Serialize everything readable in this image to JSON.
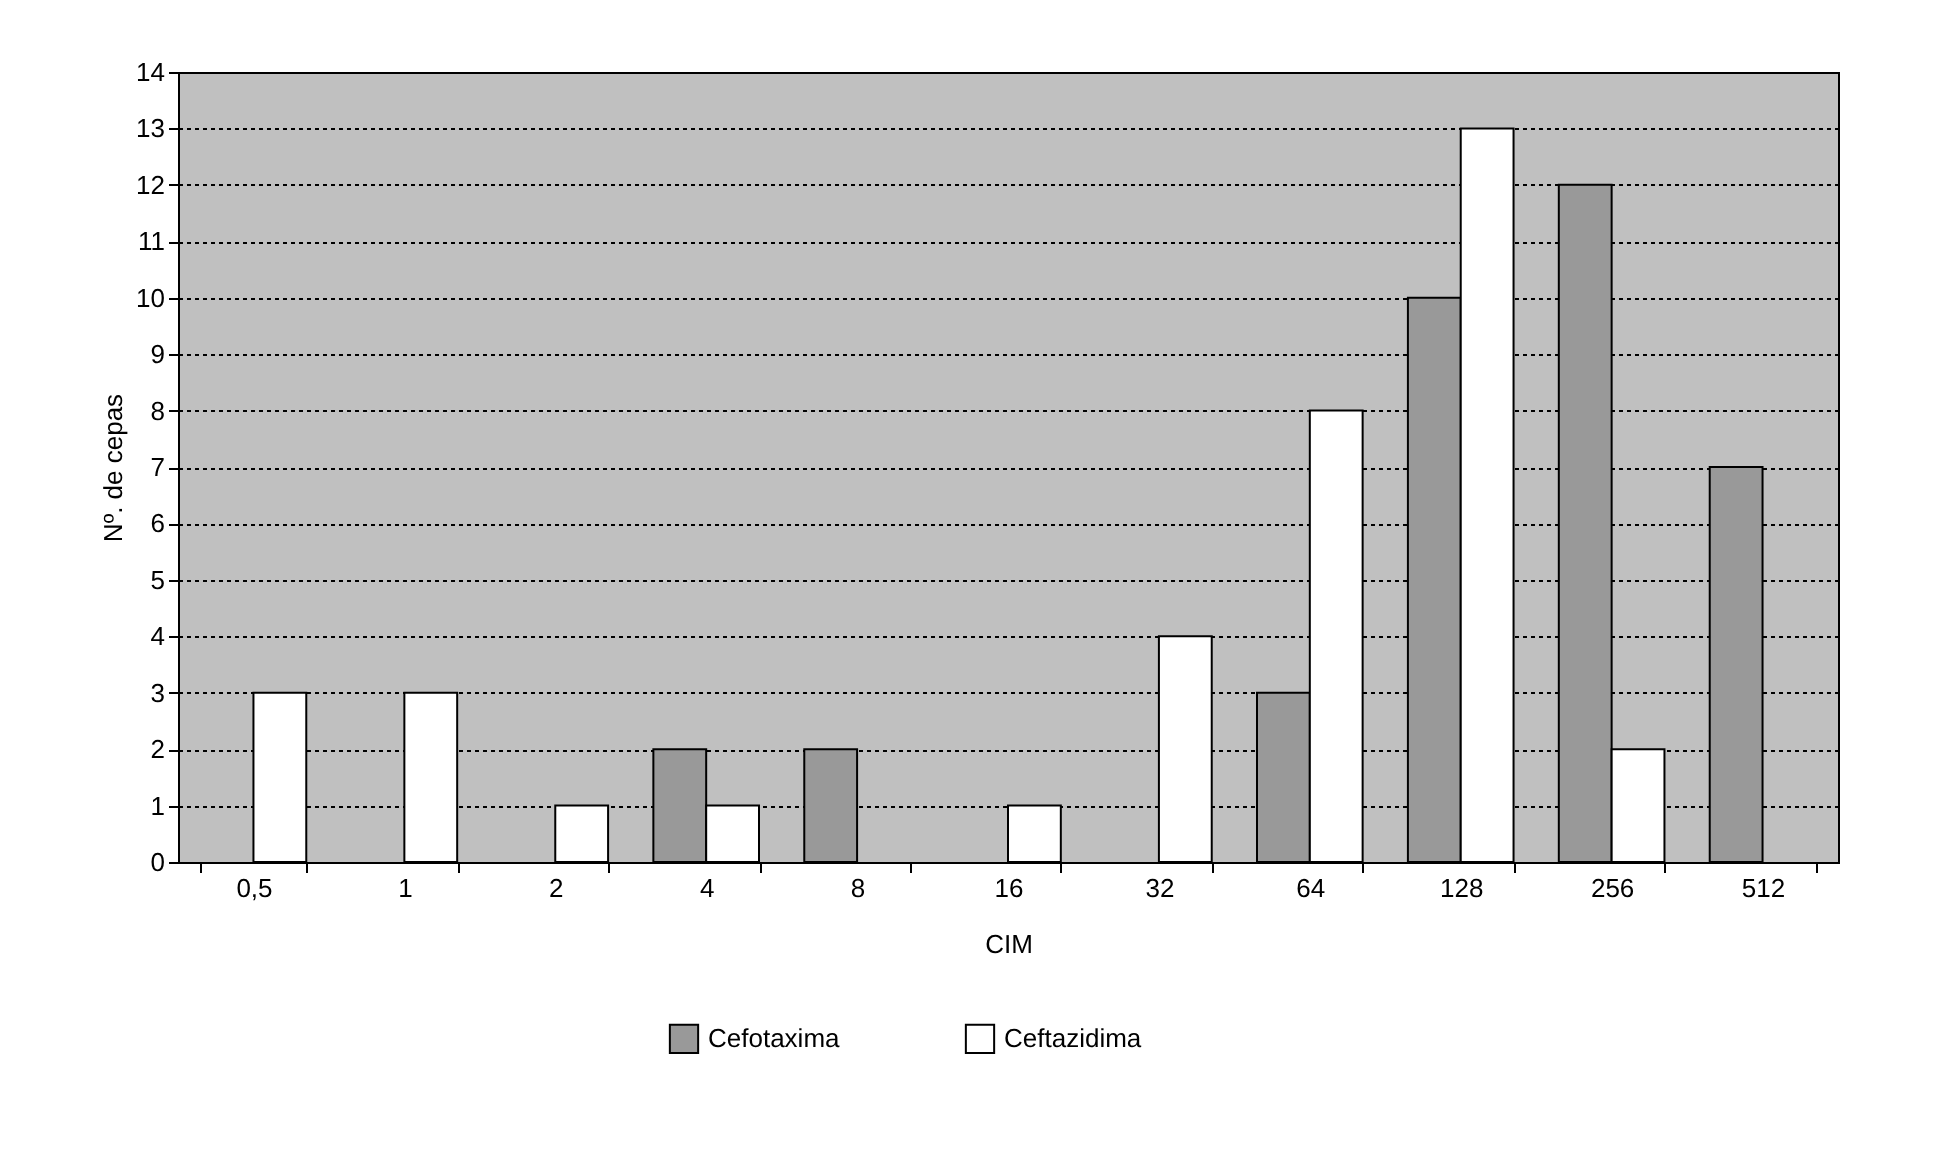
{
  "chart_data": {
    "type": "bar",
    "xlabel": "CIM",
    "ylabel": "Nº. de cepas",
    "categories": [
      "0,5",
      "1",
      "2",
      "4",
      "8",
      "16",
      "32",
      "64",
      "128",
      "256",
      "512"
    ],
    "series": [
      {
        "name": "Cefotaxima",
        "color": "#999999",
        "values": [
          0,
          0,
          0,
          2,
          2,
          0,
          0,
          3,
          10,
          12,
          7
        ]
      },
      {
        "name": "Ceftazidima",
        "color": "#ffffff",
        "values": [
          3,
          3,
          1,
          1,
          0,
          1,
          4,
          8,
          13,
          2,
          0
        ]
      }
    ],
    "ylim": [
      0,
      14
    ],
    "yticks": [
      0,
      1,
      2,
      3,
      4,
      5,
      6,
      7,
      8,
      9,
      10,
      11,
      12,
      13,
      14
    ],
    "grid": "y",
    "legend": "bottom"
  }
}
